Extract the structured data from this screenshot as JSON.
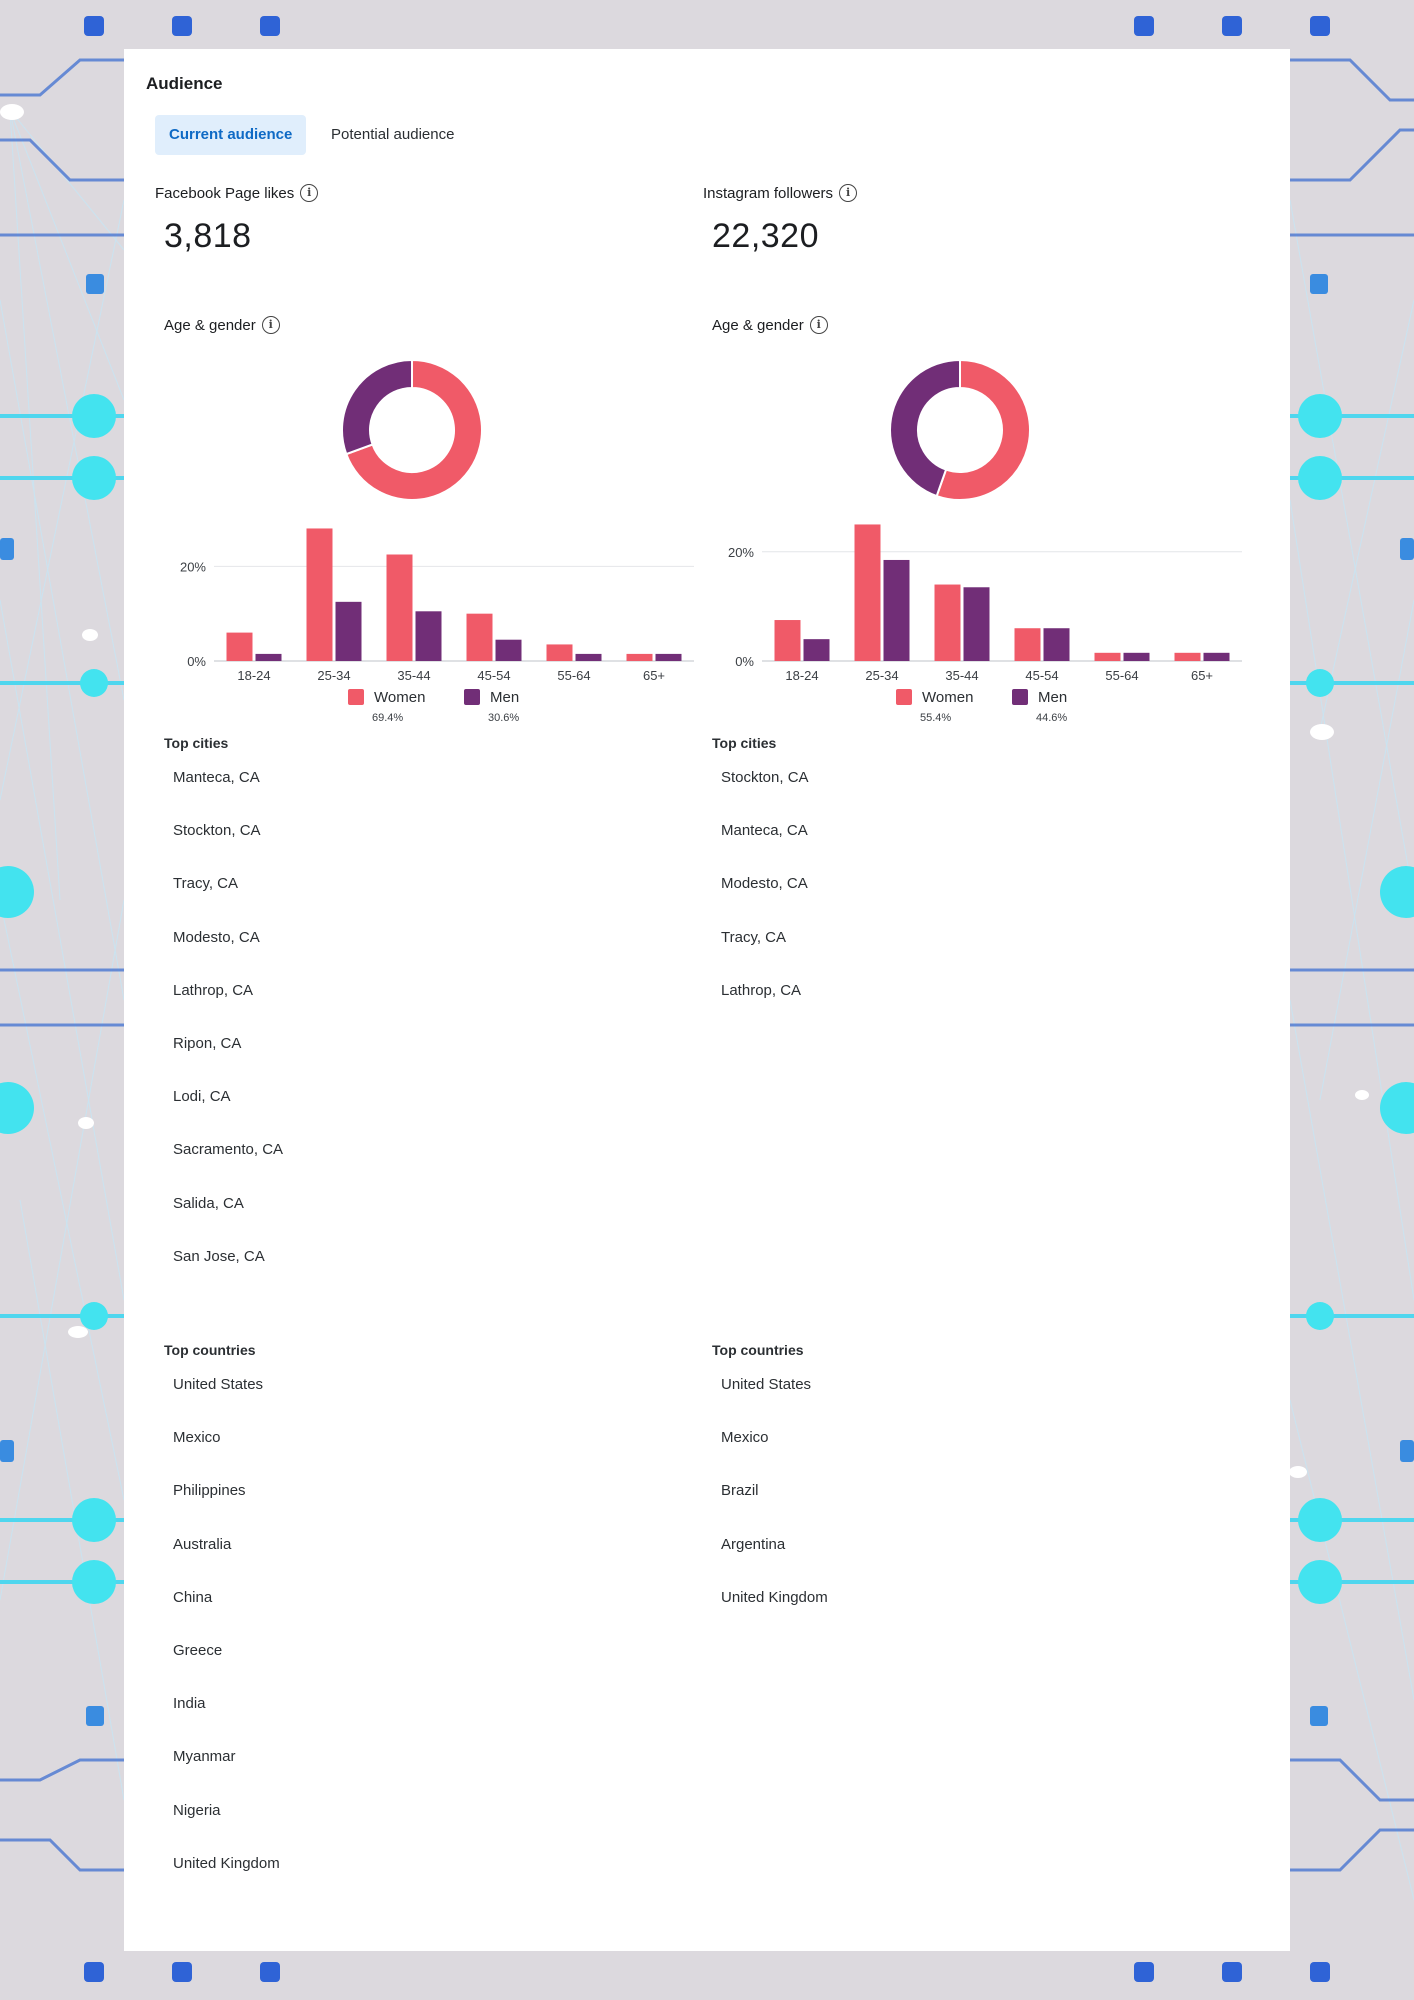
{
  "page": {
    "title": "Audience",
    "tabs": [
      {
        "label": "Current audience",
        "active": true
      },
      {
        "label": "Potential audience",
        "active": false
      }
    ]
  },
  "colors": {
    "women": "#f05a68",
    "men": "#712e77",
    "accent": "#0f6ac5"
  },
  "facebook": {
    "metric_label": "Facebook Page likes",
    "metric_value": "3,818",
    "age_gender_label": "Age & gender",
    "legend": {
      "women_label": "Women",
      "women_pct": "69.4%",
      "men_label": "Men",
      "men_pct": "30.6%"
    },
    "top_cities_title": "Top cities",
    "top_cities": [
      "Manteca, CA",
      "Stockton, CA",
      "Tracy, CA",
      "Modesto, CA",
      "Lathrop, CA",
      "Ripon, CA",
      "Lodi, CA",
      "Sacramento, CA",
      "Salida, CA",
      "San Jose, CA"
    ],
    "top_countries_title": "Top countries",
    "top_countries": [
      "United States",
      "Mexico",
      "Philippines",
      "Australia",
      "China",
      "Greece",
      "India",
      "Myanmar",
      "Nigeria",
      "United Kingdom"
    ]
  },
  "instagram": {
    "metric_label": "Instagram followers",
    "metric_value": "22,320",
    "age_gender_label": "Age & gender",
    "legend": {
      "women_label": "Women",
      "women_pct": "55.4%",
      "men_label": "Men",
      "men_pct": "44.6%"
    },
    "top_cities_title": "Top cities",
    "top_cities": [
      "Stockton, CA",
      "Manteca, CA",
      "Modesto, CA",
      "Tracy, CA",
      "Lathrop, CA"
    ],
    "top_countries_title": "Top countries",
    "top_countries": [
      "United States",
      "Mexico",
      "Brazil",
      "Argentina",
      "United Kingdom"
    ]
  },
  "chart_data": [
    {
      "type": "pie",
      "title": "Facebook Page likes – Age & gender",
      "labels": [
        "Women",
        "Men"
      ],
      "values": [
        69.4,
        30.6
      ]
    },
    {
      "type": "bar",
      "title": "Facebook Page likes – Age & gender by age",
      "categories": [
        "18-24",
        "25-34",
        "35-44",
        "45-54",
        "55-64",
        "65+"
      ],
      "series": [
        {
          "name": "Women",
          "values": [
            6,
            28,
            22.5,
            10,
            3.5,
            1.5
          ]
        },
        {
          "name": "Men",
          "values": [
            1.5,
            12.5,
            10.5,
            4.5,
            1.5,
            1.5
          ]
        }
      ],
      "yticks": [
        "0%",
        "20%"
      ],
      "ylim": [
        0,
        30
      ]
    },
    {
      "type": "pie",
      "title": "Instagram followers – Age & gender",
      "labels": [
        "Women",
        "Men"
      ],
      "values": [
        55.4,
        44.6
      ]
    },
    {
      "type": "bar",
      "title": "Instagram followers – Age & gender by age",
      "categories": [
        "18-24",
        "25-34",
        "35-44",
        "45-54",
        "55-64",
        "65+"
      ],
      "series": [
        {
          "name": "Women",
          "values": [
            7.5,
            25,
            14,
            6,
            1.5,
            1.5
          ]
        },
        {
          "name": "Men",
          "values": [
            4,
            18.5,
            13.5,
            6,
            1.5,
            1.5
          ]
        }
      ],
      "yticks": [
        "0%",
        "20%"
      ],
      "ylim": [
        0,
        26
      ]
    }
  ]
}
